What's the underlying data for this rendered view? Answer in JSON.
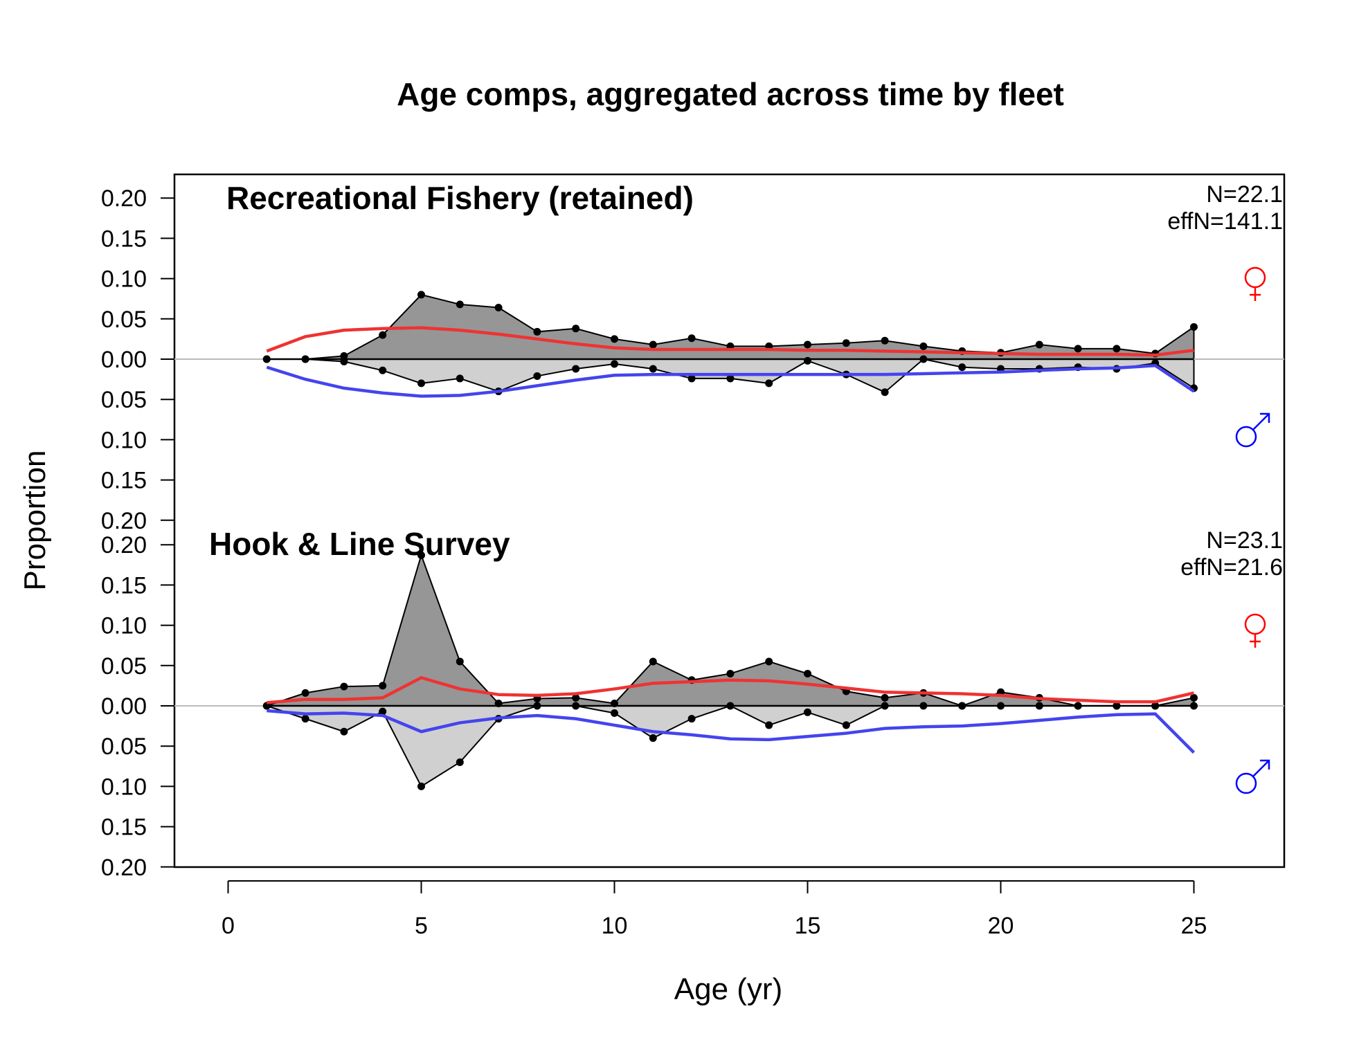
{
  "chart_data": {
    "type": "area",
    "title": "Age comps, aggregated across time by fleet",
    "xlabel": "Age (yr)",
    "ylabel": "Proportion",
    "xlim": [
      -1.4,
      27.4
    ],
    "ylim": [
      -0.2,
      0.2
    ],
    "x_ticks": [
      0,
      5,
      10,
      15,
      20,
      25
    ],
    "y_tick_labels": [
      "0.20",
      "0.15",
      "0.10",
      "0.05",
      "0.00",
      "0.05",
      "0.10",
      "0.15",
      "0.20"
    ],
    "grid": false,
    "legend": "female and male symbols at right of each panel",
    "colors": {
      "female_expected": "#ee3333",
      "male_expected": "#4444ee",
      "female_symbol": "#ff0000",
      "male_symbol": "#0000ff",
      "female_fill": "#969696",
      "male_fill": "#d0d0d0",
      "zero_line": "#bbbbbb"
    },
    "symbols": {
      "female": "♀",
      "male": "♂"
    },
    "ages": [
      1,
      2,
      3,
      4,
      5,
      6,
      7,
      8,
      9,
      10,
      11,
      12,
      13,
      14,
      15,
      16,
      17,
      18,
      19,
      20,
      21,
      22,
      23,
      24,
      25
    ],
    "panels": [
      {
        "name": "Recreational Fishery (retained)",
        "n_text": "N=22.1",
        "effn_text": "effN=141.1",
        "female_observed": [
          0.0,
          0.0,
          0.004,
          0.03,
          0.08,
          0.068,
          0.064,
          0.034,
          0.038,
          0.025,
          0.018,
          0.026,
          0.016,
          0.016,
          0.018,
          0.02,
          0.023,
          0.016,
          0.01,
          0.008,
          0.018,
          0.013,
          0.013,
          0.007,
          0.04
        ],
        "male_observed": [
          0.0,
          0.0,
          0.003,
          0.014,
          0.03,
          0.024,
          0.04,
          0.021,
          0.012,
          0.006,
          0.012,
          0.024,
          0.024,
          0.03,
          0.002,
          0.019,
          0.041,
          0.0,
          0.01,
          0.012,
          0.012,
          0.01,
          0.012,
          0.005,
          0.036
        ],
        "female_expected": [
          0.01,
          0.028,
          0.036,
          0.038,
          0.039,
          0.036,
          0.031,
          0.025,
          0.019,
          0.014,
          0.012,
          0.012,
          0.012,
          0.012,
          0.011,
          0.011,
          0.01,
          0.009,
          0.008,
          0.007,
          0.006,
          0.006,
          0.006,
          0.005,
          0.011
        ],
        "male_expected": [
          0.01,
          0.025,
          0.036,
          0.042,
          0.046,
          0.045,
          0.04,
          0.033,
          0.026,
          0.02,
          0.019,
          0.019,
          0.019,
          0.019,
          0.019,
          0.019,
          0.019,
          0.018,
          0.017,
          0.016,
          0.014,
          0.012,
          0.011,
          0.008,
          0.04
        ]
      },
      {
        "name": "Hook & Line Survey",
        "n_text": "N=23.1",
        "effn_text": "effN=21.6",
        "female_observed": [
          0.0,
          0.016,
          0.024,
          0.025,
          0.187,
          0.055,
          0.003,
          0.009,
          0.01,
          0.003,
          0.055,
          0.032,
          0.04,
          0.055,
          0.04,
          0.018,
          0.01,
          0.016,
          0.0,
          0.017,
          0.01,
          0.0,
          0.0,
          0.0,
          0.01
        ],
        "male_observed": [
          0.0,
          0.016,
          0.032,
          0.007,
          0.1,
          0.07,
          0.016,
          0.0,
          0.0,
          0.009,
          0.04,
          0.016,
          0.0,
          0.024,
          0.008,
          0.024,
          0.0,
          0.0,
          0.0,
          0.0,
          0.0,
          0.0,
          0.0,
          0.0,
          0.0
        ],
        "female_expected": [
          0.004,
          0.008,
          0.008,
          0.01,
          0.035,
          0.021,
          0.014,
          0.013,
          0.015,
          0.021,
          0.028,
          0.03,
          0.032,
          0.031,
          0.027,
          0.022,
          0.017,
          0.016,
          0.015,
          0.013,
          0.009,
          0.007,
          0.005,
          0.005,
          0.016
        ],
        "male_expected": [
          0.006,
          0.01,
          0.009,
          0.012,
          0.032,
          0.021,
          0.015,
          0.012,
          0.016,
          0.024,
          0.032,
          0.036,
          0.041,
          0.042,
          0.038,
          0.034,
          0.028,
          0.026,
          0.025,
          0.022,
          0.018,
          0.014,
          0.011,
          0.01,
          0.058
        ]
      }
    ]
  }
}
